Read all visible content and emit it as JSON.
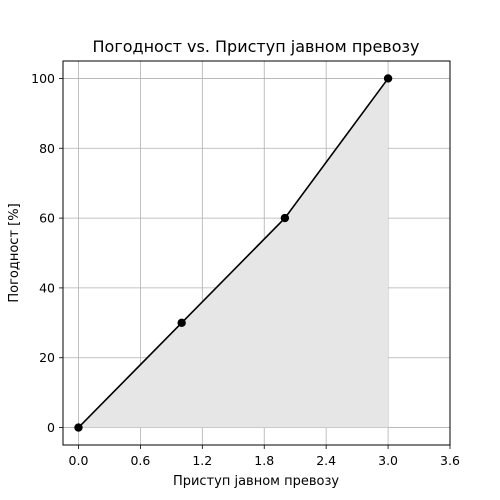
{
  "chart_data": {
    "type": "area",
    "title": "Погодност vs. Приступ јавном превозу",
    "xlabel": "Приступ јавном превозу",
    "ylabel": "Погодност [%]",
    "x": [
      0,
      1,
      2,
      3
    ],
    "y": [
      0,
      30,
      60,
      100
    ],
    "xlim": [
      -0.15,
      3.6
    ],
    "ylim": [
      -5,
      105
    ],
    "xticks": [
      "0.0",
      "0.6",
      "1.2",
      "1.8",
      "2.4",
      "3.0",
      "3.6"
    ],
    "xtick_values": [
      0.0,
      0.6,
      1.2,
      1.8,
      2.4,
      3.0,
      3.6
    ],
    "yticks": [
      "0",
      "20",
      "40",
      "60",
      "80",
      "100"
    ],
    "ytick_values": [
      0,
      20,
      40,
      60,
      80,
      100
    ],
    "grid": true,
    "line_color": "#000000",
    "fill_color": "#e6e6e6",
    "grid_color": "#b0b0b0"
  }
}
